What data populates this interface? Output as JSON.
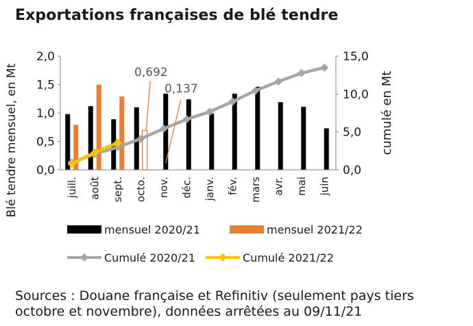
{
  "colors": {
    "mensuel_2020": "#000000",
    "mensuel_2021": "#ed7d31",
    "cumul_2020": "#a6a6a6",
    "cumul_2021": "#ffc000",
    "axis": "#595959",
    "annotation": "#ed7d31"
  },
  "source_note": "Sources : Douane française et Refinitiv (seulement pays tiers octobre et novembre), données arrêtées au 09/11/21",
  "chart_data": {
    "type": "bar",
    "title": "Exportations françaises de blé tendre",
    "ylabel": "Blé tendre mensuel, en Mt",
    "y2label": "cumulé en Mt",
    "ylim": [
      0,
      2
    ],
    "y2lim": [
      0,
      15
    ],
    "yticks": [
      "0,0",
      "0,5",
      "1,0",
      "1,5",
      "2,0"
    ],
    "y2ticks": [
      "0,0",
      "5,0",
      "10,0",
      "15,0"
    ],
    "categories": [
      "juill.",
      "août",
      "sept.",
      "octo.",
      "nov.",
      "déc.",
      "janv.",
      "fév.",
      "mars",
      "avr.",
      "mai",
      "juin"
    ],
    "series": [
      {
        "name": "mensuel 2020/21",
        "kind": "bar",
        "axis": "left",
        "values": [
          0.98,
          1.12,
          0.89,
          1.1,
          1.34,
          1.24,
          0.99,
          1.34,
          1.46,
          1.19,
          1.11,
          0.73
        ]
      },
      {
        "name": "mensuel 2021/22",
        "kind": "bar",
        "axis": "left",
        "values": [
          0.79,
          1.5,
          1.29,
          0.692,
          null,
          null,
          null,
          null,
          null,
          null,
          null,
          null
        ],
        "outlined": [
          false,
          false,
          false,
          true,
          false,
          false,
          false,
          false,
          false,
          false,
          false,
          false
        ]
      },
      {
        "name": "Cumulé 2020/21",
        "kind": "line",
        "axis": "right",
        "values": [
          0.98,
          2.1,
          2.99,
          4.09,
          5.43,
          6.67,
          7.66,
          9.0,
          10.46,
          11.65,
          12.76,
          13.49
        ]
      },
      {
        "name": "Cumulé 2021/22",
        "kind": "line",
        "axis": "right",
        "values": [
          0.79,
          2.29,
          3.58,
          null,
          null,
          null,
          null,
          null,
          null,
          null,
          null,
          null
        ]
      }
    ],
    "annotations": [
      {
        "text": "0,692",
        "category": "octo."
      },
      {
        "text": "0,137",
        "category": "nov."
      }
    ],
    "legend_position": "bottom",
    "grid": false
  }
}
